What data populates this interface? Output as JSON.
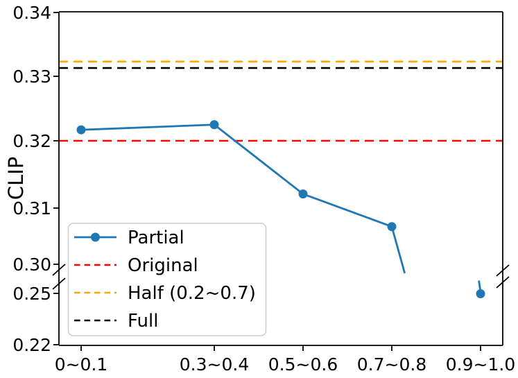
{
  "chart_data": {
    "type": "line",
    "title": "",
    "xlabel": "",
    "ylabel": "CLIP",
    "categories": [
      "0~0.1",
      "0.3~0.4",
      "0.5~0.6",
      "0.7~0.8",
      "0.9~1.0"
    ],
    "x_bin_centers": [
      0.05,
      0.35,
      0.55,
      0.75,
      0.95
    ],
    "xlim": [
      0,
      1
    ],
    "grid": false,
    "series": [
      {
        "name": "Partial",
        "color": "#1f77b4",
        "style": "solid",
        "marker": "circle",
        "values": [
          0.3217,
          0.3225,
          0.3121,
          0.3067,
          0.2498
        ]
      }
    ],
    "reference_lines": [
      {
        "name": "Original",
        "color": "#ff0000",
        "style": "dashed",
        "value": 0.32
      },
      {
        "name": "Half (0.2~0.7)",
        "color": "#ffa500",
        "style": "dashed",
        "value": 0.3323
      },
      {
        "name": "Full",
        "color": "#000000",
        "style": "dashed",
        "value": 0.3313
      }
    ],
    "y_axis": {
      "broken": true,
      "upper_segment": {
        "ticks": [
          0.34,
          0.33,
          0.32,
          0.31,
          0.3
        ],
        "tick_labels": [
          "0.34",
          "0.33",
          "0.32",
          "0.31",
          "0.30"
        ],
        "range": [
          0.299,
          0.3415
        ]
      },
      "lower_segment": {
        "ticks": [
          0.25,
          0.22
        ],
        "tick_labels": [
          "0.25",
          "0.22"
        ],
        "range": [
          0.22,
          0.2565
        ]
      },
      "break_between": [
        0.2565,
        0.299
      ]
    },
    "legend": {
      "position": "lower left",
      "entries": [
        {
          "label": "Partial",
          "color": "#1f77b4",
          "style": "solid",
          "marker": "circle"
        },
        {
          "label": "Original",
          "color": "#ff0000",
          "style": "dashed",
          "marker": "none"
        },
        {
          "label": "Half (0.2~0.7)",
          "color": "#ffa500",
          "style": "dashed",
          "marker": "none"
        },
        {
          "label": "Full",
          "color": "#000000",
          "style": "dashed",
          "marker": "none"
        }
      ]
    }
  }
}
